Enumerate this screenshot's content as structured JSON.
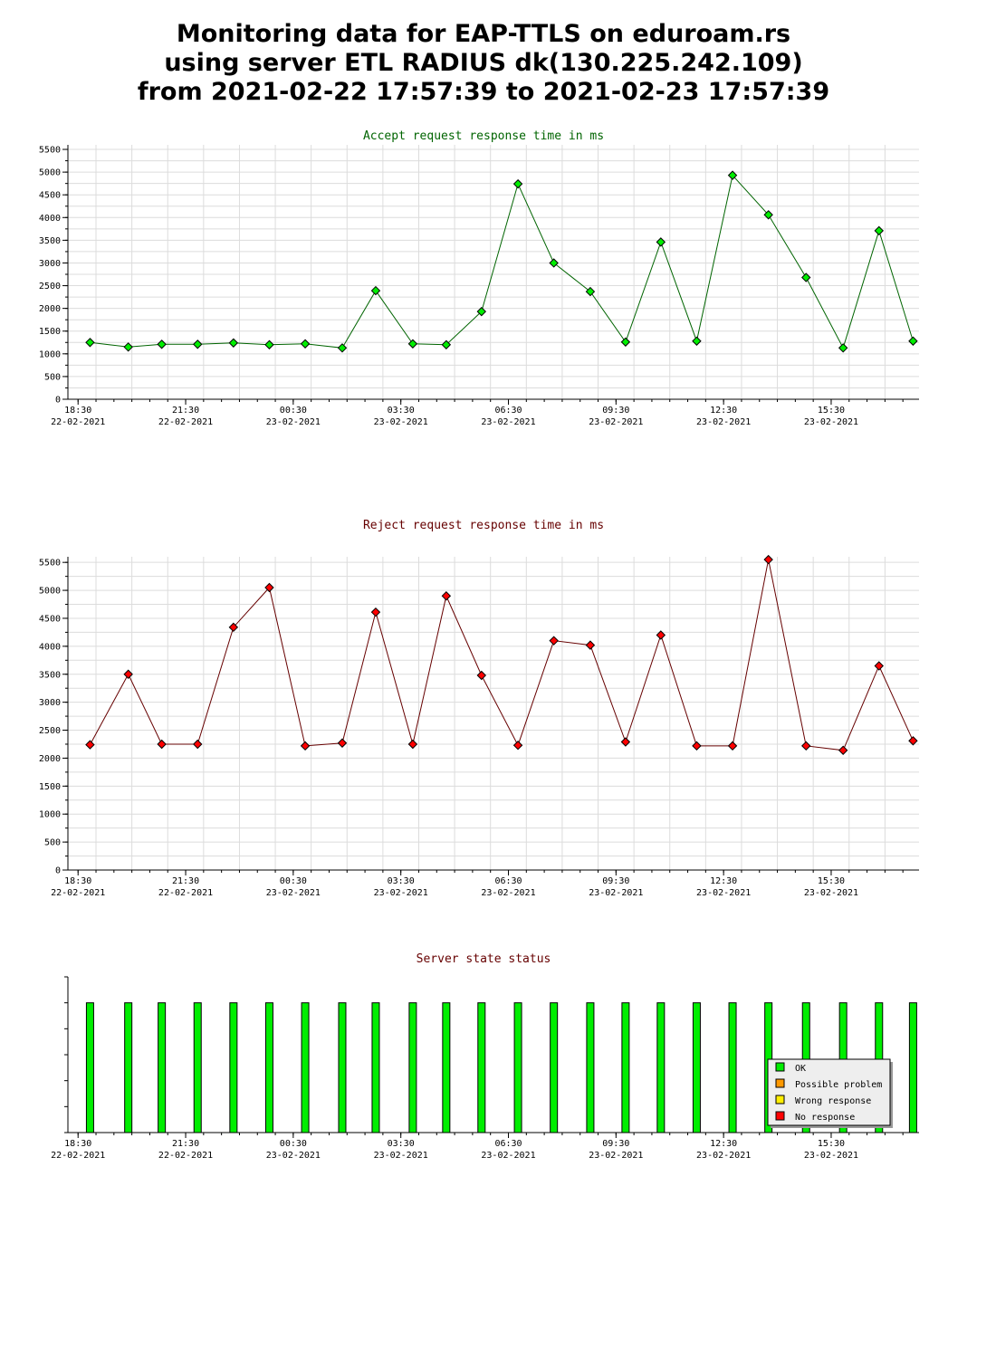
{
  "title": {
    "line1": "Monitoring data for EAP-TTLS on eduroam.rs",
    "line2": "using server ETL RADIUS dk(130.225.242.109)",
    "line3": "from 2021-02-22 17:57:39 to 2021-02-23 17:57:39"
  },
  "chart_data": [
    {
      "type": "line",
      "title": "Accept request response time in ms",
      "title_color": "#006400",
      "line_color": "#006400",
      "marker_color": "#00ee00",
      "ylim": [
        0,
        5600
      ],
      "yticks": [
        0,
        500,
        1000,
        1500,
        2000,
        2500,
        3000,
        3500,
        4000,
        4500,
        5000,
        5500
      ],
      "xlim": [
        "2021-02-22 18:13",
        "2021-02-23 17:57"
      ],
      "xticks": [
        {
          "time": "2021-02-22 18:30",
          "label": "18:30",
          "date": "22-02-2021"
        },
        {
          "time": "2021-02-22 21:30",
          "label": "21:30",
          "date": "22-02-2021"
        },
        {
          "time": "2021-02-23 00:30",
          "label": "00:30",
          "date": "23-02-2021"
        },
        {
          "time": "2021-02-23 03:30",
          "label": "03:30",
          "date": "23-02-2021"
        },
        {
          "time": "2021-02-23 06:30",
          "label": "06:30",
          "date": "23-02-2021"
        },
        {
          "time": "2021-02-23 09:30",
          "label": "09:30",
          "date": "23-02-2021"
        },
        {
          "time": "2021-02-23 12:30",
          "label": "12:30",
          "date": "23-02-2021"
        },
        {
          "time": "2021-02-23 15:30",
          "label": "15:30",
          "date": "23-02-2021"
        }
      ],
      "x": [
        "2021-02-22 18:50",
        "2021-02-22 19:54",
        "2021-02-22 20:50",
        "2021-02-22 21:50",
        "2021-02-22 22:50",
        "2021-02-22 23:50",
        "2021-02-23 00:50",
        "2021-02-23 01:52",
        "2021-02-23 02:48",
        "2021-02-23 03:50",
        "2021-02-23 04:46",
        "2021-02-23 05:45",
        "2021-02-23 06:46",
        "2021-02-23 07:46",
        "2021-02-23 08:47",
        "2021-02-23 09:46",
        "2021-02-23 10:45",
        "2021-02-23 11:45",
        "2021-02-23 12:45",
        "2021-02-23 13:45",
        "2021-02-23 14:48",
        "2021-02-23 15:50",
        "2021-02-23 16:50",
        "2021-02-23 17:47"
      ],
      "y": [
        1250,
        1150,
        1210,
        1210,
        1240,
        1200,
        1220,
        1130,
        2390,
        1220,
        1200,
        1930,
        4740,
        3000,
        2370,
        1260,
        3460,
        1280,
        4930,
        4060,
        2680,
        1130,
        3710,
        1280
      ]
    },
    {
      "type": "line",
      "title": "Reject request response time in ms",
      "title_color": "#660000",
      "line_color": "#660000",
      "marker_color": "#ff0000",
      "ylim": [
        0,
        5600
      ],
      "yticks": [
        0,
        500,
        1000,
        1500,
        2000,
        2500,
        3000,
        3500,
        4000,
        4500,
        5000,
        5500
      ],
      "xlim": [
        "2021-02-22 18:13",
        "2021-02-23 17:57"
      ],
      "xticks": [
        {
          "time": "2021-02-22 18:30",
          "label": "18:30",
          "date": "22-02-2021"
        },
        {
          "time": "2021-02-22 21:30",
          "label": "21:30",
          "date": "22-02-2021"
        },
        {
          "time": "2021-02-23 00:30",
          "label": "00:30",
          "date": "23-02-2021"
        },
        {
          "time": "2021-02-23 03:30",
          "label": "03:30",
          "date": "23-02-2021"
        },
        {
          "time": "2021-02-23 06:30",
          "label": "06:30",
          "date": "23-02-2021"
        },
        {
          "time": "2021-02-23 09:30",
          "label": "09:30",
          "date": "23-02-2021"
        },
        {
          "time": "2021-02-23 12:30",
          "label": "12:30",
          "date": "23-02-2021"
        },
        {
          "time": "2021-02-23 15:30",
          "label": "15:30",
          "date": "23-02-2021"
        }
      ],
      "x": [
        "2021-02-22 18:50",
        "2021-02-22 19:54",
        "2021-02-22 20:50",
        "2021-02-22 21:50",
        "2021-02-22 22:50",
        "2021-02-22 23:50",
        "2021-02-23 00:50",
        "2021-02-23 01:52",
        "2021-02-23 02:48",
        "2021-02-23 03:50",
        "2021-02-23 04:46",
        "2021-02-23 05:45",
        "2021-02-23 06:46",
        "2021-02-23 07:46",
        "2021-02-23 08:47",
        "2021-02-23 09:46",
        "2021-02-23 10:45",
        "2021-02-23 11:45",
        "2021-02-23 12:45",
        "2021-02-23 13:45",
        "2021-02-23 14:48",
        "2021-02-23 15:50",
        "2021-02-23 16:50",
        "2021-02-23 17:47"
      ],
      "y": [
        2240,
        3500,
        2250,
        2250,
        4340,
        5050,
        2220,
        2270,
        4610,
        2250,
        4900,
        3480,
        2230,
        4100,
        4020,
        2290,
        4200,
        2220,
        2220,
        5550,
        2220,
        2140,
        3650,
        2310
      ]
    },
    {
      "type": "bar",
      "title": "Server state status",
      "title_color": "#660000",
      "xlim": [
        "2021-02-22 18:13",
        "2021-02-23 17:57"
      ],
      "xticks": [
        {
          "time": "2021-02-22 18:30",
          "label": "18:30",
          "date": "22-02-2021"
        },
        {
          "time": "2021-02-22 21:30",
          "label": "21:30",
          "date": "22-02-2021"
        },
        {
          "time": "2021-02-23 00:30",
          "label": "00:30",
          "date": "23-02-2021"
        },
        {
          "time": "2021-02-23 03:30",
          "label": "03:30",
          "date": "23-02-2021"
        },
        {
          "time": "2021-02-23 06:30",
          "label": "06:30",
          "date": "23-02-2021"
        },
        {
          "time": "2021-02-23 09:30",
          "label": "09:30",
          "date": "23-02-2021"
        },
        {
          "time": "2021-02-23 12:30",
          "label": "12:30",
          "date": "23-02-2021"
        },
        {
          "time": "2021-02-23 15:30",
          "label": "15:30",
          "date": "23-02-2021"
        }
      ],
      "x": [
        "2021-02-22 18:50",
        "2021-02-22 19:54",
        "2021-02-22 20:50",
        "2021-02-22 21:50",
        "2021-02-22 22:50",
        "2021-02-22 23:50",
        "2021-02-23 00:50",
        "2021-02-23 01:52",
        "2021-02-23 02:48",
        "2021-02-23 03:50",
        "2021-02-23 04:46",
        "2021-02-23 05:45",
        "2021-02-23 06:46",
        "2021-02-23 07:46",
        "2021-02-23 08:47",
        "2021-02-23 09:46",
        "2021-02-23 10:45",
        "2021-02-23 11:45",
        "2021-02-23 12:45",
        "2021-02-23 13:45",
        "2021-02-23 14:48",
        "2021-02-23 15:50",
        "2021-02-23 16:50",
        "2021-02-23 17:47"
      ],
      "status": [
        "OK",
        "OK",
        "OK",
        "OK",
        "OK",
        "OK",
        "OK",
        "OK",
        "OK",
        "OK",
        "OK",
        "OK",
        "OK",
        "OK",
        "OK",
        "OK",
        "OK",
        "OK",
        "OK",
        "OK",
        "OK",
        "OK",
        "OK",
        "OK"
      ],
      "legend": {
        "position": "bottom-right",
        "entries": [
          {
            "name": "OK",
            "color": "#00ee00"
          },
          {
            "name": "Possible problem",
            "color": "#ff9900"
          },
          {
            "name": "Wrong response",
            "color": "#ffee00"
          },
          {
            "name": "No response",
            "color": "#ff0000"
          }
        ]
      }
    }
  ]
}
